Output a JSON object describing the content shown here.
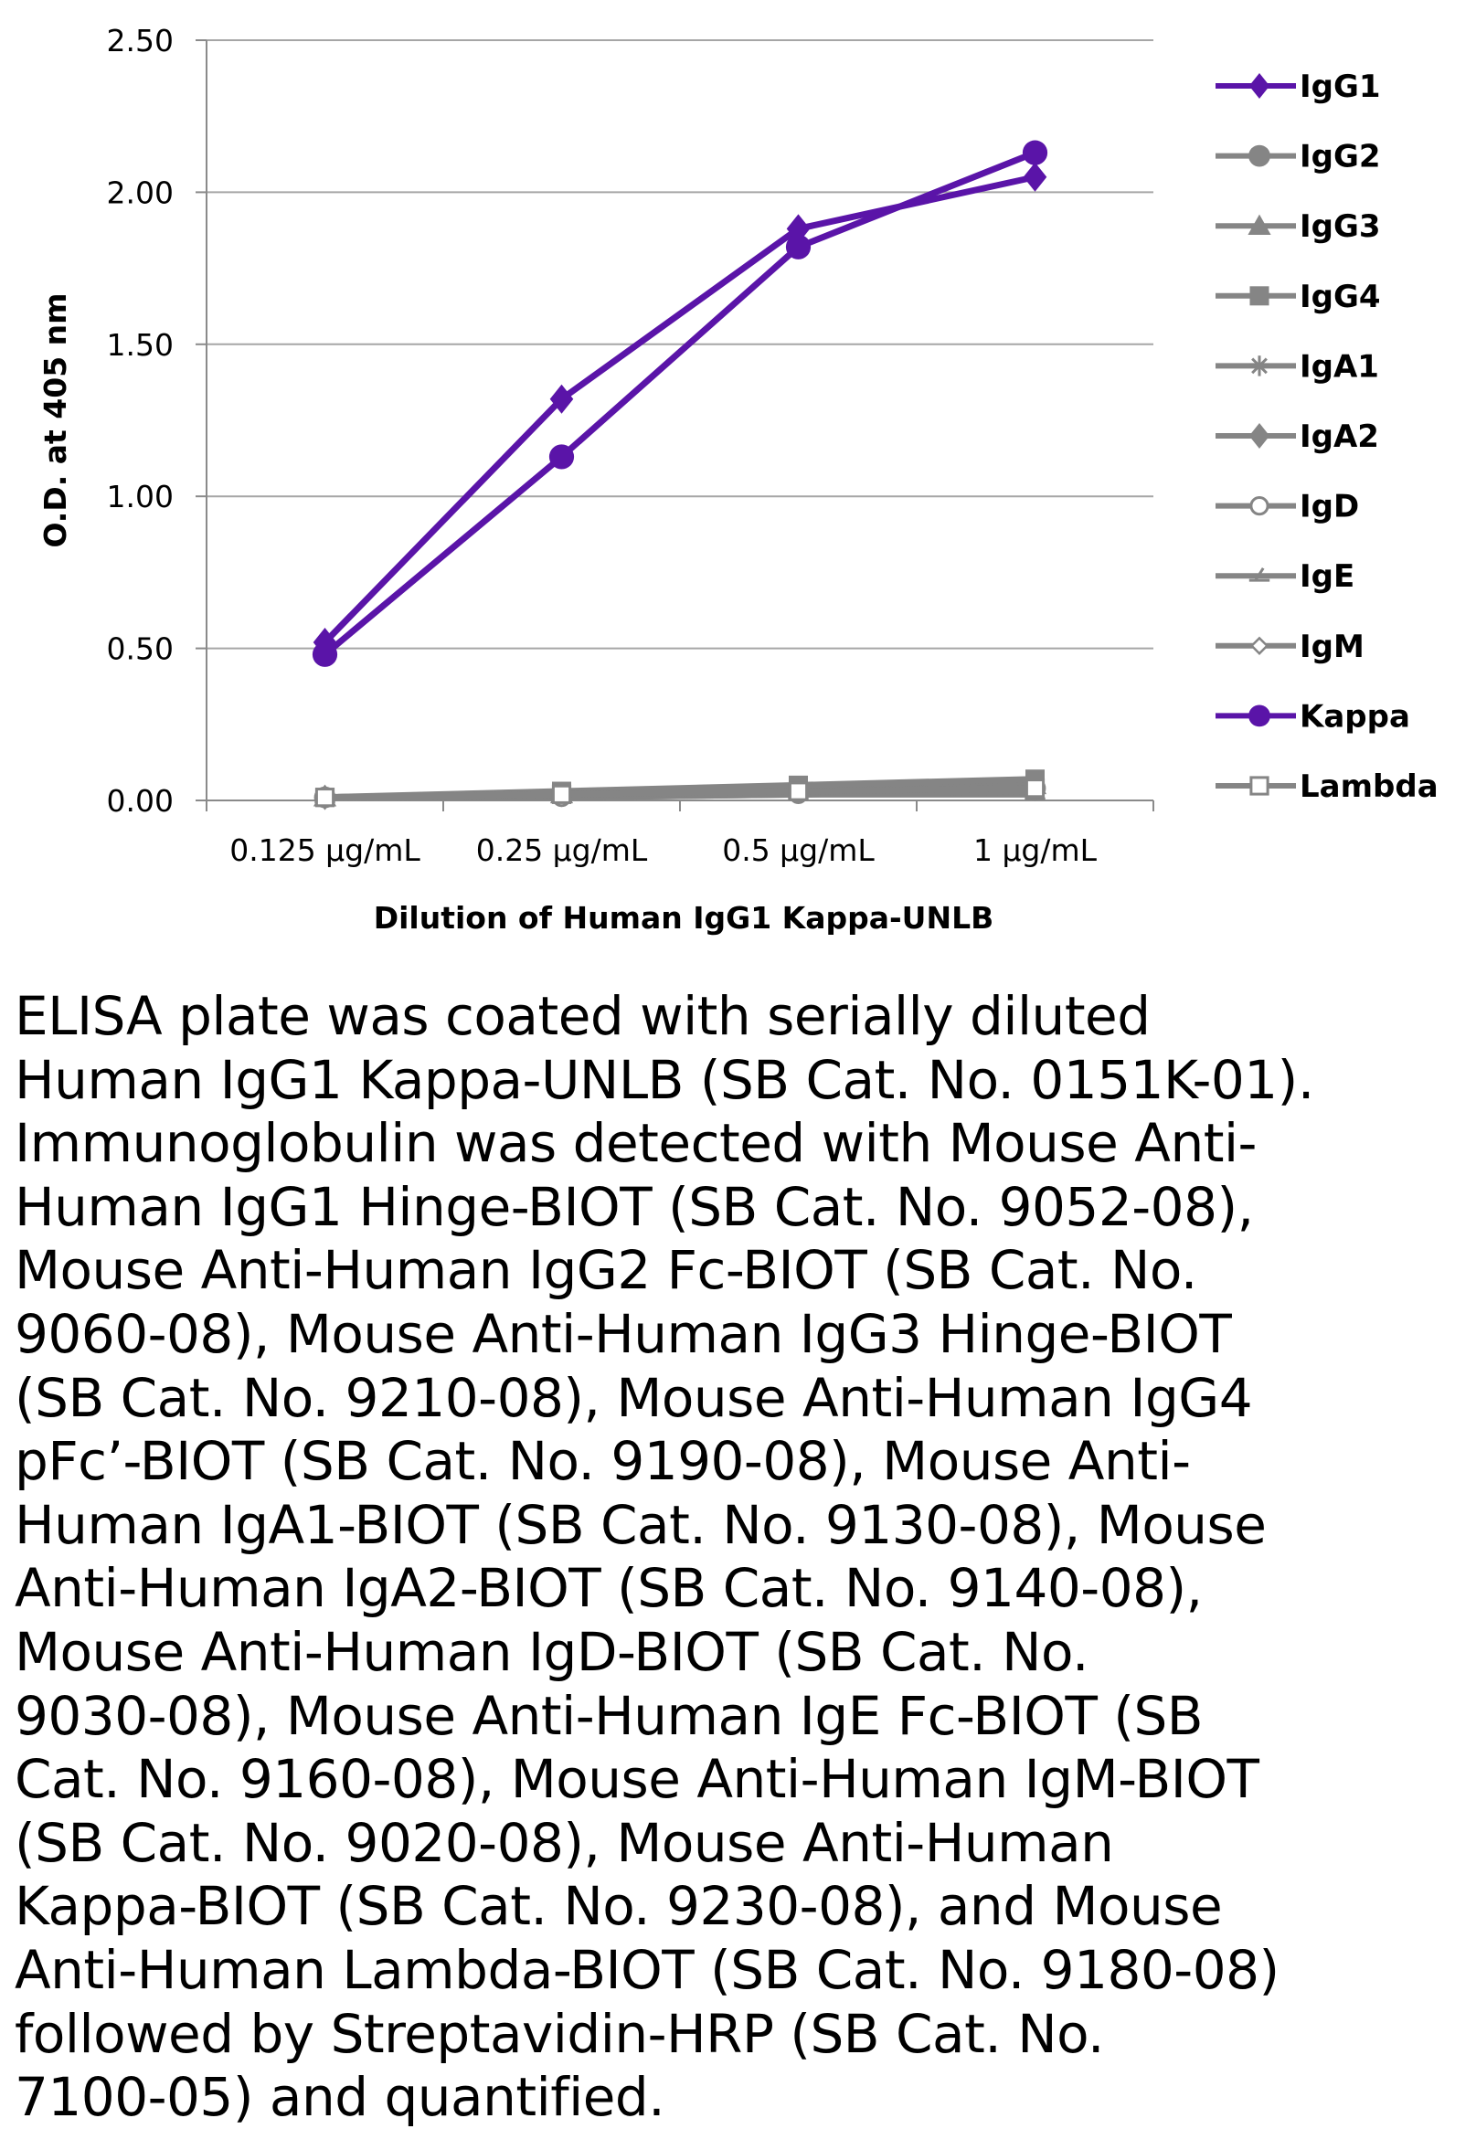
{
  "chart_data": {
    "type": "line",
    "title": "",
    "xlabel": "Dilution of Human IgG1 Kappa-UNLB",
    "ylabel": "O.D. at 405 nm",
    "categories": [
      "0.125 µg/mL",
      "0.25 µg/mL",
      "0.5 µg/mL",
      "1 µg/mL"
    ],
    "ylim": [
      0,
      2.5
    ],
    "yticks": [
      "0.00",
      "0.50",
      "1.00",
      "1.50",
      "2.00",
      "2.50"
    ],
    "grid": true,
    "legend_position": "right",
    "series": [
      {
        "name": "IgG1",
        "marker": "diamond",
        "color": "#5a14a8",
        "values": [
          0.52,
          1.32,
          1.88,
          2.05
        ]
      },
      {
        "name": "IgG2",
        "marker": "circle",
        "color": "#858585",
        "values": [
          0.01,
          0.02,
          0.03,
          0.04
        ]
      },
      {
        "name": "IgG3",
        "marker": "triangle",
        "color": "#858585",
        "values": [
          0.01,
          0.02,
          0.04,
          0.05
        ]
      },
      {
        "name": "IgG4",
        "marker": "square",
        "color": "#858585",
        "values": [
          0.01,
          0.03,
          0.05,
          0.07
        ]
      },
      {
        "name": "IgA1",
        "marker": "star",
        "color": "#858585",
        "values": [
          0.01,
          0.02,
          0.03,
          0.04
        ]
      },
      {
        "name": "IgA2",
        "marker": "diamond",
        "color": "#858585",
        "values": [
          0.01,
          0.02,
          0.03,
          0.04
        ]
      },
      {
        "name": "IgD",
        "marker": "circle-open",
        "color": "#858585",
        "values": [
          0.01,
          0.01,
          0.02,
          0.03
        ]
      },
      {
        "name": "IgE",
        "marker": "triangle-open",
        "color": "#858585",
        "values": [
          0.01,
          0.01,
          0.02,
          0.02
        ]
      },
      {
        "name": "IgM",
        "marker": "diamond-open",
        "color": "#858585",
        "values": [
          0.01,
          0.02,
          0.02,
          0.03
        ]
      },
      {
        "name": "Kappa",
        "marker": "circle",
        "color": "#5a14a8",
        "values": [
          0.48,
          1.13,
          1.82,
          2.13
        ]
      },
      {
        "name": "Lambda",
        "marker": "square-open",
        "color": "#858585",
        "values": [
          0.01,
          0.02,
          0.03,
          0.04
        ]
      }
    ]
  },
  "caption": "ELISA plate was coated with serially diluted\nHuman IgG1 Kappa-UNLB (SB Cat. No. 0151K-01).\nImmunoglobulin was detected with Mouse Anti-\nHuman IgG1 Hinge-BIOT (SB Cat. No. 9052-08),\nMouse Anti-Human IgG2 Fc-BIOT (SB Cat. No.\n9060-08), Mouse Anti-Human IgG3 Hinge-BIOT\n(SB Cat. No. 9210-08), Mouse Anti-Human IgG4\npFc’-BIOT (SB Cat. No. 9190-08), Mouse Anti-\nHuman IgA1-BIOT (SB Cat. No. 9130-08), Mouse\nAnti-Human IgA2-BIOT (SB Cat. No. 9140-08),\nMouse Anti-Human IgD-BIOT (SB Cat. No.\n9030-08), Mouse Anti-Human IgE Fc-BIOT (SB\nCat. No. 9160-08), Mouse Anti-Human IgM-BIOT\n(SB Cat. No. 9020-08), Mouse Anti-Human\nKappa-BIOT (SB Cat. No. 9230-08), and Mouse\nAnti-Human Lambda-BIOT (SB Cat. No. 9180-08)\nfollowed by Streptavidin-HRP (SB Cat. No.\n7100-05) and quantified."
}
